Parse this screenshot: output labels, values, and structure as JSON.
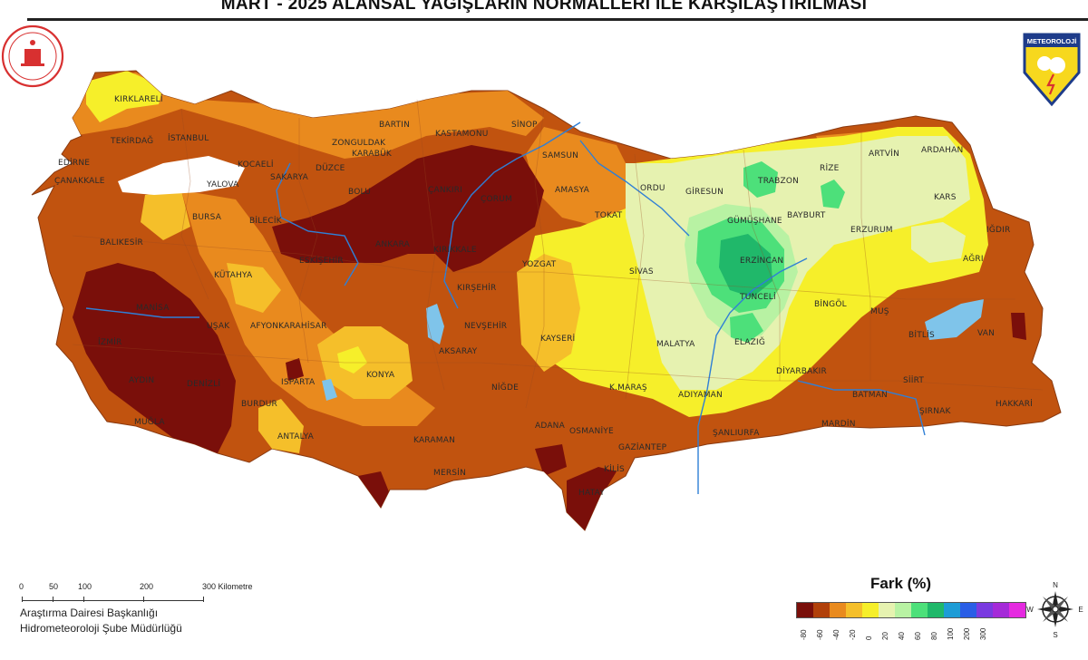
{
  "title": "MART - 2025 ALANSAL YAĞIŞLARIN NORMALLERİ İLE KARŞILAŞTIRILMASI",
  "logo_right_text": "METEOROLOJİ",
  "legend": {
    "title": "Fark (%)",
    "colors": [
      "#7a0f0a",
      "#b1400a",
      "#e98a1e",
      "#f5bf2a",
      "#f6ef2a",
      "#e6f2b0",
      "#b8f2a3",
      "#4de07a",
      "#20b86a",
      "#1e9cd6",
      "#2a5ee6",
      "#7a3ae0",
      "#a52ad8",
      "#e52ae0"
    ],
    "ticks": [
      "-80",
      "-60",
      "-40",
      "-20",
      "0",
      "20",
      "40",
      "60",
      "80",
      "100",
      "200",
      "300"
    ]
  },
  "scale": {
    "labels": [
      "0",
      "50",
      "100",
      "200",
      "300 Kilometre"
    ]
  },
  "credits": {
    "line1": "Araştırma Dairesi Başkanlığı",
    "line2": "Hidrometeoroloji Şube Müdürlüğü"
  },
  "compass": {
    "n": "N",
    "e": "E",
    "s": "S",
    "w": "W"
  },
  "cities": [
    {
      "name": "KIRKLARELİ"
    },
    {
      "name": "TEKİRDAĞ"
    },
    {
      "name": "İSTANBUL"
    },
    {
      "name": "EDİRNE"
    },
    {
      "name": "ÇANAKKALE"
    },
    {
      "name": "BALIKESİR"
    },
    {
      "name": "BURSA"
    },
    {
      "name": "YALOVA"
    },
    {
      "name": "KOCAELİ"
    },
    {
      "name": "SAKARYA"
    },
    {
      "name": "DÜZCE"
    },
    {
      "name": "BİLECİK"
    },
    {
      "name": "KÜTAHYA"
    },
    {
      "name": "MANİSA"
    },
    {
      "name": "İZMİR"
    },
    {
      "name": "UŞAK"
    },
    {
      "name": "AFYONKARAHİSAR"
    },
    {
      "name": "AYDIN"
    },
    {
      "name": "DENİZLİ"
    },
    {
      "name": "MUĞLA"
    },
    {
      "name": "BURDUR"
    },
    {
      "name": "ISPARTA"
    },
    {
      "name": "ANTALYA"
    },
    {
      "name": "KONYA"
    },
    {
      "name": "KARAMAN"
    },
    {
      "name": "MERSİN"
    },
    {
      "name": "ADANA"
    },
    {
      "name": "OSMANİYE"
    },
    {
      "name": "HATAY"
    },
    {
      "name": "GAZİANTEP"
    },
    {
      "name": "KİLİS"
    },
    {
      "name": "ŞANLIURFA"
    },
    {
      "name": "ADIYAMAN"
    },
    {
      "name": "K.MARAŞ"
    },
    {
      "name": "MALATYA"
    },
    {
      "name": "KAYSERİ"
    },
    {
      "name": "NİĞDE"
    },
    {
      "name": "AKSARAY"
    },
    {
      "name": "NEVŞEHİR"
    },
    {
      "name": "KIRŞEHİR"
    },
    {
      "name": "KIRIKKALE"
    },
    {
      "name": "ANKARA"
    },
    {
      "name": "ESKİŞEHİR"
    },
    {
      "name": "BOLU"
    },
    {
      "name": "ZONGULDAK"
    },
    {
      "name": "KARABÜK"
    },
    {
      "name": "BARTIN"
    },
    {
      "name": "KASTAMONU"
    },
    {
      "name": "SİNOP"
    },
    {
      "name": "ÇANKIRI"
    },
    {
      "name": "ÇORUM"
    },
    {
      "name": "SAMSUN"
    },
    {
      "name": "AMASYA"
    },
    {
      "name": "TOKAT"
    },
    {
      "name": "YOZGAT"
    },
    {
      "name": "SİVAS"
    },
    {
      "name": "ORDU"
    },
    {
      "name": "GİRESUN"
    },
    {
      "name": "TRABZON"
    },
    {
      "name": "RİZE"
    },
    {
      "name": "GÜMÜŞHANE"
    },
    {
      "name": "BAYBURT"
    },
    {
      "name": "ERZİNCAN"
    },
    {
      "name": "TUNCELİ"
    },
    {
      "name": "ELAZIĞ"
    },
    {
      "name": "BİNGÖL"
    },
    {
      "name": "ERZURUM"
    },
    {
      "name": "ARTVİN"
    },
    {
      "name": "ARDAHAN"
    },
    {
      "name": "KARS"
    },
    {
      "name": "IĞDIR"
    },
    {
      "name": "AĞRI"
    },
    {
      "name": "MUŞ"
    },
    {
      "name": "BİTLİS"
    },
    {
      "name": "VAN"
    },
    {
      "name": "DİYARBAKIR"
    },
    {
      "name": "BATMAN"
    },
    {
      "name": "SİİRT"
    },
    {
      "name": "ŞIRNAK"
    },
    {
      "name": "MARDİN"
    },
    {
      "name": "HAKKARİ"
    }
  ]
}
